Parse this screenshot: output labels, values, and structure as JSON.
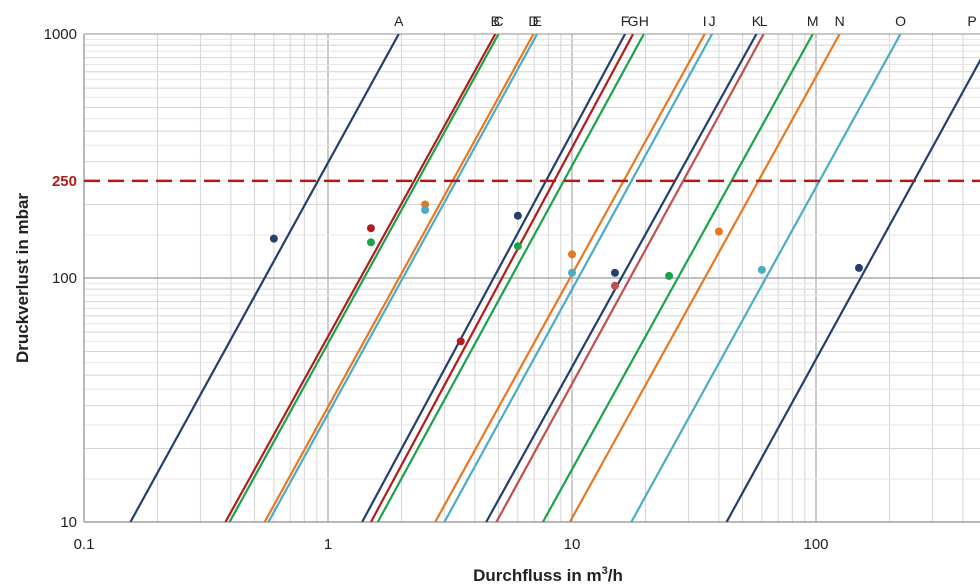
{
  "chart_data": {
    "type": "line",
    "x_scale": "log",
    "y_scale": "log",
    "xlim": [
      0.1,
      500
    ],
    "ylim": [
      10,
      1000
    ],
    "xticks": [
      "0.1",
      "1",
      "10",
      "100"
    ],
    "xtick_values": [
      0.1,
      1,
      10,
      100
    ],
    "yticks": [
      "10",
      "100",
      "1000"
    ],
    "ytick_values": [
      10,
      100,
      1000
    ],
    "xlabel": "Durchfluss in m",
    "xlabel_sup": "3",
    "xlabel_tail": "/h",
    "ylabel": "Druckverlust in mbar",
    "grid": true,
    "reference_line": {
      "y": 250,
      "label": "250",
      "color": "#b01c1c",
      "style": "dashed"
    },
    "series": [
      {
        "name": "A",
        "color": "#243f6b",
        "x": [
          0.155,
          1.95
        ],
        "y": [
          10,
          1000
        ],
        "point": [
          0.6,
          145
        ]
      },
      {
        "name": "B",
        "color": "#b01c1c",
        "x": [
          0.38,
          4.85
        ],
        "y": [
          10,
          1000
        ],
        "point": [
          1.5,
          160
        ]
      },
      {
        "name": "C",
        "color": "#1aa34a",
        "x": [
          0.395,
          5.0
        ],
        "y": [
          10,
          1000
        ],
        "point": [
          1.5,
          140
        ]
      },
      {
        "name": "D",
        "color": "#e87722",
        "x": [
          0.55,
          6.95
        ],
        "y": [
          10,
          1000
        ],
        "point": [
          2.5,
          200
        ]
      },
      {
        "name": "E",
        "color": "#4bacc6",
        "x": [
          0.57,
          7.2
        ],
        "y": [
          10,
          1000
        ],
        "point": [
          2.5,
          190
        ]
      },
      {
        "name": "F",
        "color": "#243f6b",
        "x": [
          1.38,
          16.5
        ],
        "y": [
          10,
          1000
        ],
        "point": [
          6,
          180
        ]
      },
      {
        "name": "G",
        "color": "#b01c1c",
        "x": [
          1.5,
          17.8
        ],
        "y": [
          10,
          1000
        ],
        "point": [
          3.5,
          55
        ]
      },
      {
        "name": "H",
        "color": "#1aa34a",
        "x": [
          1.6,
          19.7
        ],
        "y": [
          10,
          1000
        ],
        "point": [
          6,
          135
        ]
      },
      {
        "name": "I",
        "color": "#e87722",
        "x": [
          2.75,
          35
        ],
        "y": [
          10,
          1000
        ],
        "point": [
          10,
          125
        ]
      },
      {
        "name": "J",
        "color": "#4bacc6",
        "x": [
          3.0,
          37.5
        ],
        "y": [
          10,
          1000
        ],
        "point": [
          10,
          105
        ]
      },
      {
        "name": "K",
        "color": "#243f6b",
        "x": [
          4.45,
          57
        ],
        "y": [
          10,
          1000
        ],
        "point": [
          15,
          105
        ]
      },
      {
        "name": "L",
        "color": "#c0504d",
        "x": [
          4.9,
          61
        ],
        "y": [
          10,
          1000
        ],
        "point": [
          15,
          93
        ]
      },
      {
        "name": "M",
        "color": "#1aa34a",
        "x": [
          7.6,
          97
        ],
        "y": [
          10,
          1000
        ],
        "point": [
          25,
          102
        ]
      },
      {
        "name": "N",
        "color": "#e87722",
        "x": [
          9.8,
          125
        ],
        "y": [
          10,
          1000
        ],
        "point": [
          40,
          155
        ]
      },
      {
        "name": "O",
        "color": "#4bacc6",
        "x": [
          17.5,
          222
        ],
        "y": [
          10,
          1000
        ],
        "point": [
          60,
          108
        ]
      },
      {
        "name": "P",
        "color": "#243f6b",
        "x": [
          43,
          540
        ],
        "y": [
          10,
          1000
        ],
        "point": [
          150,
          110
        ]
      }
    ]
  }
}
